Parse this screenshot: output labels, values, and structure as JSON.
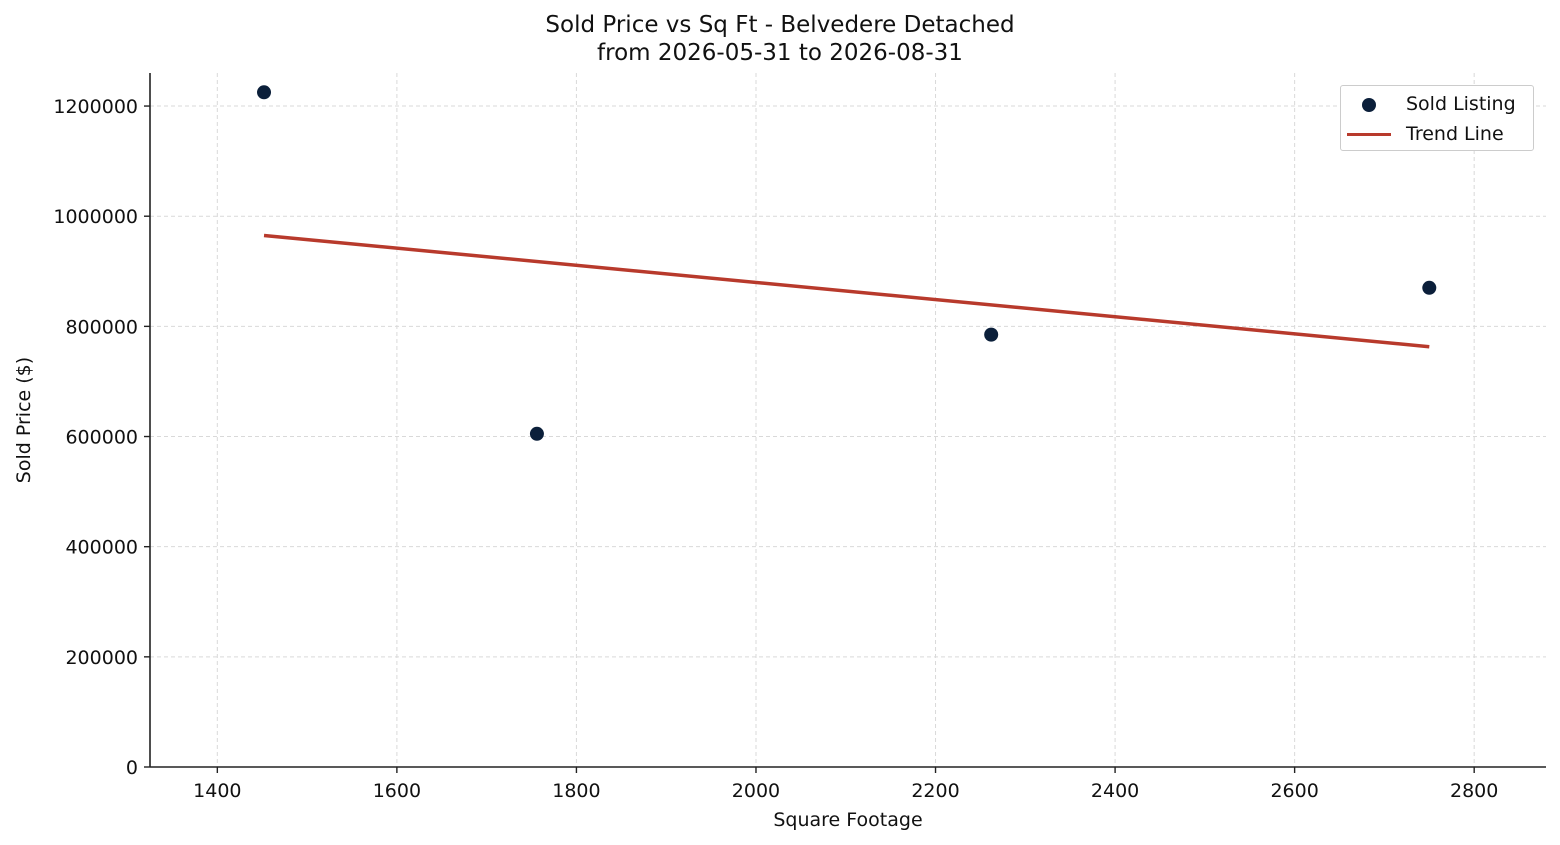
{
  "chart_data": {
    "type": "scatter",
    "title": "Sold Price vs Sq Ft - Belvedere Detached",
    "subtitle": "from 2026-05-31 to 2026-08-31",
    "xlabel": "Square Footage",
    "ylabel": "Sold Price ($)",
    "xlim": [
      1325,
      2880
    ],
    "ylim": [
      0,
      1260000
    ],
    "xticks": [
      1400,
      1600,
      1800,
      2000,
      2200,
      2400,
      2600,
      2800
    ],
    "yticks": [
      0,
      200000,
      400000,
      600000,
      800000,
      1000000,
      1200000
    ],
    "grid": true,
    "legend_position": "top-right",
    "series": [
      {
        "name": "Sold Listing",
        "kind": "scatter",
        "color": "#0b1f3a",
        "points": [
          {
            "x": 1452,
            "y": 1225000
          },
          {
            "x": 1756,
            "y": 605000
          },
          {
            "x": 2262,
            "y": 785000
          },
          {
            "x": 2750,
            "y": 870000
          }
        ]
      },
      {
        "name": "Trend Line",
        "kind": "line",
        "color": "#b83a2c",
        "points": [
          {
            "x": 1452,
            "y": 965000
          },
          {
            "x": 2750,
            "y": 763000
          }
        ]
      }
    ]
  }
}
